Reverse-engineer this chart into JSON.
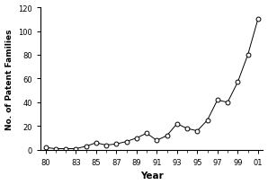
{
  "years": [
    80,
    81,
    82,
    83,
    84,
    85,
    86,
    87,
    88,
    89,
    90,
    91,
    92,
    93,
    94,
    95,
    96,
    97,
    98,
    99,
    100,
    101
  ],
  "values": [
    2,
    1,
    1,
    1,
    3,
    6,
    4,
    5,
    7,
    10,
    14,
    8,
    12,
    22,
    18,
    16,
    25,
    42,
    40,
    57,
    80,
    110
  ],
  "xlabel": "Year",
  "ylabel": "No. of Patent Families",
  "ylim": [
    0,
    120
  ],
  "yticks": [
    0,
    20,
    40,
    60,
    80,
    100,
    120
  ],
  "tick_labels": [
    "80",
    "83",
    "85",
    "87",
    "89",
    "91",
    "93",
    "95",
    "97",
    "99",
    "01"
  ],
  "tick_positions": [
    80,
    83,
    85,
    87,
    89,
    91,
    93,
    95,
    97,
    99,
    101
  ],
  "xlim": [
    79.5,
    101.5
  ],
  "line_color": "#000000",
  "marker_facecolor": "#ffffff",
  "marker_edgecolor": "#000000",
  "background_color": "#ffffff"
}
